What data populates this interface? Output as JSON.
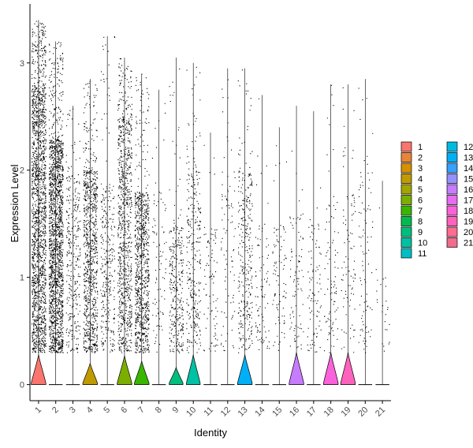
{
  "chart_data": {
    "type": "violin",
    "title": "",
    "xlabel": "Identity",
    "ylabel": "Expression Level",
    "ylim": [
      -0.15,
      3.55
    ],
    "y_ticks": [
      0,
      1,
      2,
      3
    ],
    "categories": [
      "1",
      "2",
      "3",
      "4",
      "5",
      "6",
      "7",
      "8",
      "9",
      "10",
      "11",
      "12",
      "13",
      "14",
      "15",
      "16",
      "17",
      "18",
      "19",
      "20",
      "21"
    ],
    "colors": [
      "#F8766D",
      "#E8853A",
      "#D89000",
      "#C09B00",
      "#A3A500",
      "#7CAE00",
      "#39B600",
      "#00BB4E",
      "#00BF7D",
      "#00C1A3",
      "#00BFC4",
      "#00BAE0",
      "#00B0F6",
      "#35A2FF",
      "#9590FF",
      "#C77CFF",
      "#E76BF3",
      "#FA62DB",
      "#FF62BC",
      "#FF6C91",
      "#F06B8C"
    ],
    "series": [
      {
        "name": "1",
        "max": 3.4,
        "violin_height": 0.28,
        "violin_width": 0.85,
        "point_density": "very high",
        "bulk_max": 2.8
      },
      {
        "name": "2",
        "max": 3.2,
        "violin_height": 0.0,
        "violin_width": 0.0,
        "point_density": "very high",
        "bulk_max": 2.3
      },
      {
        "name": "3",
        "max": 2.6,
        "violin_height": 0.0,
        "violin_width": 0.0,
        "point_density": "medium",
        "bulk_max": 2.0
      },
      {
        "name": "4",
        "max": 2.85,
        "violin_height": 0.2,
        "violin_width": 0.85,
        "point_density": "high",
        "bulk_max": 2.0
      },
      {
        "name": "5",
        "max": 3.25,
        "violin_height": 0.0,
        "violin_width": 0.0,
        "point_density": "medium",
        "bulk_max": 1.9
      },
      {
        "name": "6",
        "max": 3.05,
        "violin_height": 0.27,
        "violin_width": 0.85,
        "point_density": "high",
        "bulk_max": 2.5
      },
      {
        "name": "7",
        "max": 2.9,
        "violin_height": 0.22,
        "violin_width": 0.85,
        "point_density": "high",
        "bulk_max": 1.8
      },
      {
        "name": "8",
        "max": 2.75,
        "violin_height": 0.0,
        "violin_width": 0.0,
        "point_density": "low",
        "bulk_max": 1.8
      },
      {
        "name": "9",
        "max": 3.05,
        "violin_height": 0.16,
        "violin_width": 0.8,
        "point_density": "medium",
        "bulk_max": 1.5
      },
      {
        "name": "10",
        "max": 3.0,
        "violin_height": 0.28,
        "violin_width": 0.8,
        "point_density": "medium",
        "bulk_max": 2.0
      },
      {
        "name": "11",
        "max": 2.35,
        "violin_height": 0.0,
        "violin_width": 0.0,
        "point_density": "low",
        "bulk_max": 1.5
      },
      {
        "name": "12",
        "max": 2.95,
        "violin_height": 0.0,
        "violin_width": 0.0,
        "point_density": "low",
        "bulk_max": 2.0
      },
      {
        "name": "13",
        "max": 2.95,
        "violin_height": 0.28,
        "violin_width": 0.85,
        "point_density": "medium",
        "bulk_max": 2.0
      },
      {
        "name": "14",
        "max": 2.7,
        "violin_height": 0.0,
        "violin_width": 0.0,
        "point_density": "low",
        "bulk_max": 1.5
      },
      {
        "name": "15",
        "max": 2.4,
        "violin_height": 0.0,
        "violin_width": 0.0,
        "point_density": "low",
        "bulk_max": 1.5
      },
      {
        "name": "16",
        "max": 2.6,
        "violin_height": 0.3,
        "violin_width": 0.85,
        "point_density": "low",
        "bulk_max": 1.6
      },
      {
        "name": "17",
        "max": 2.55,
        "violin_height": 0.0,
        "violin_width": 0.0,
        "point_density": "low",
        "bulk_max": 1.5
      },
      {
        "name": "18",
        "max": 2.8,
        "violin_height": 0.3,
        "violin_width": 0.85,
        "point_density": "low",
        "bulk_max": 1.8
      },
      {
        "name": "19",
        "max": 2.8,
        "violin_height": 0.3,
        "violin_width": 0.85,
        "point_density": "low",
        "bulk_max": 1.8
      },
      {
        "name": "20",
        "max": 2.85,
        "violin_height": 0.0,
        "violin_width": 0.0,
        "point_density": "low",
        "bulk_max": 2.0
      },
      {
        "name": "21",
        "max": 1.9,
        "violin_height": 0.0,
        "violin_width": 0.0,
        "point_density": "very low",
        "bulk_max": 1.0
      }
    ],
    "legend": {
      "placement": "right",
      "columns": 2,
      "items": [
        "1",
        "2",
        "3",
        "4",
        "5",
        "6",
        "7",
        "8",
        "9",
        "10",
        "11",
        "12",
        "13",
        "14",
        "15",
        "16",
        "17",
        "18",
        "19",
        "20",
        "21"
      ]
    },
    "grid": false
  }
}
